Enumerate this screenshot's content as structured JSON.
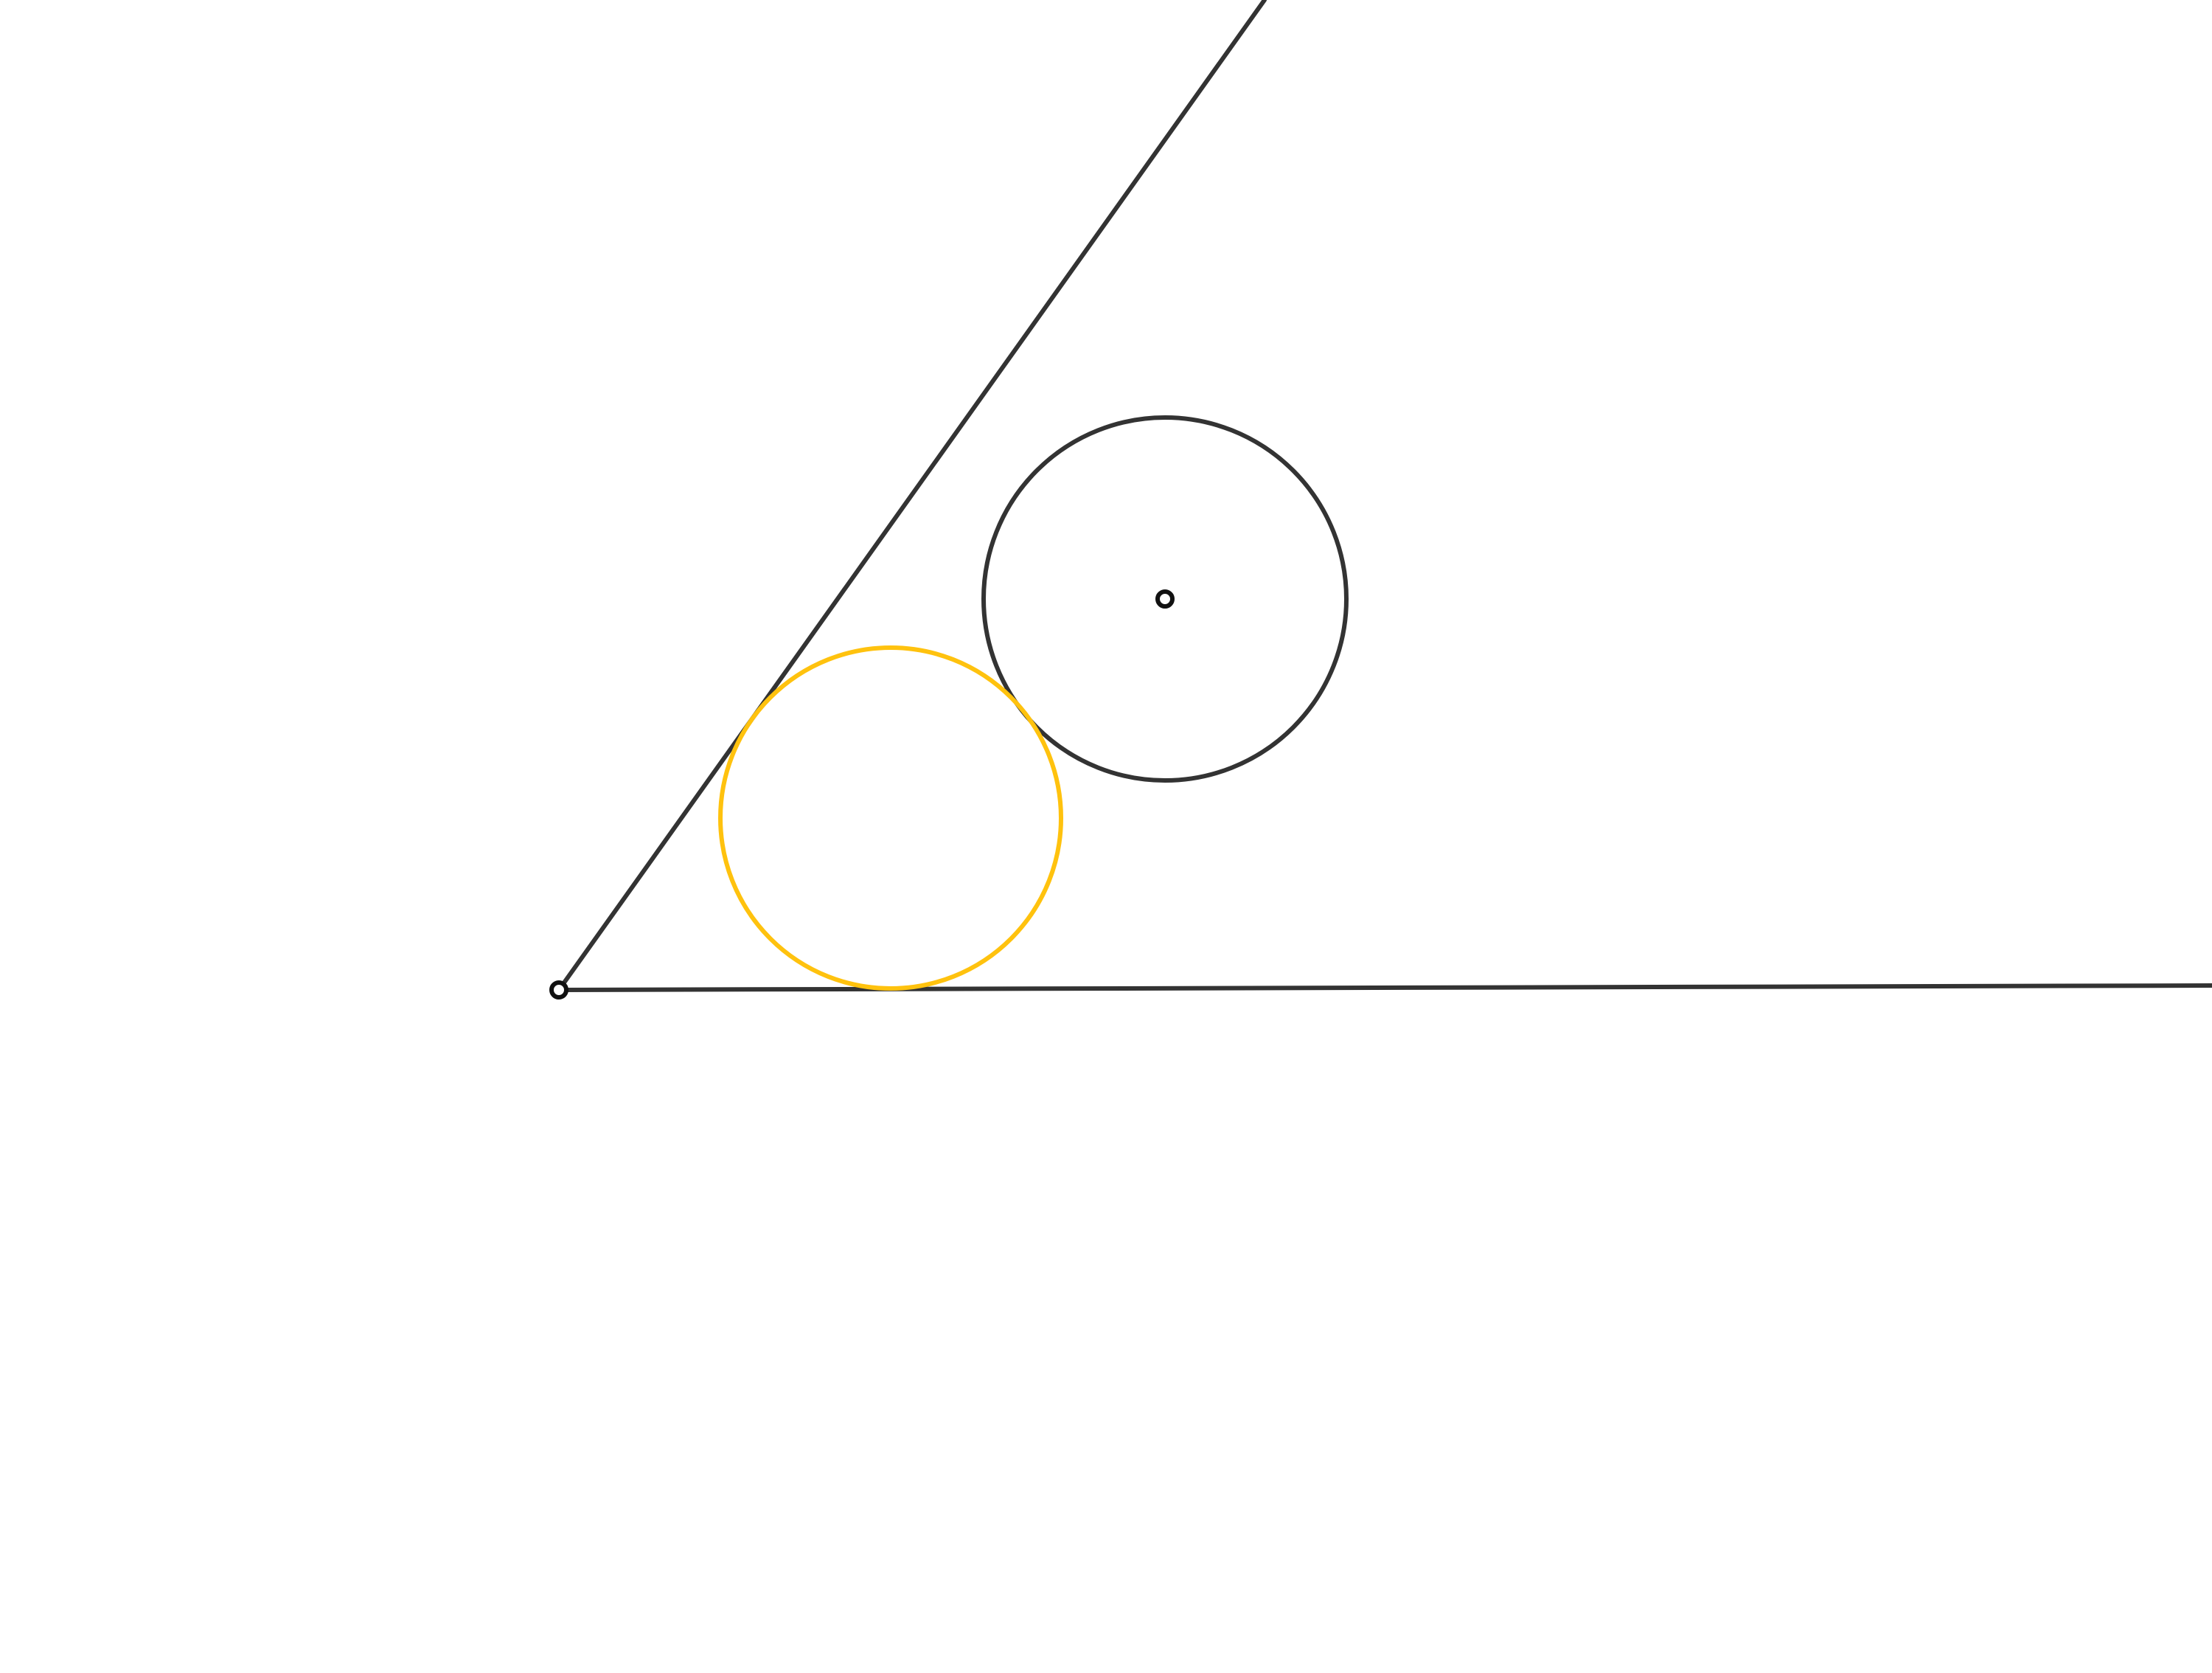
{
  "colors": {
    "background": "#ffffff",
    "construction": "#333333",
    "point": "#111111",
    "highlight": "#FFC20E"
  },
  "elements": {
    "rays": [
      {
        "name": "upper-ray"
      },
      {
        "name": "lower-ray"
      }
    ],
    "circles": [
      {
        "name": "given-circle",
        "color_key": "construction"
      },
      {
        "name": "tangent-circle",
        "color_key": "highlight"
      }
    ],
    "points": [
      {
        "name": "angle-vertex"
      },
      {
        "name": "given-circle-center"
      }
    ]
  }
}
